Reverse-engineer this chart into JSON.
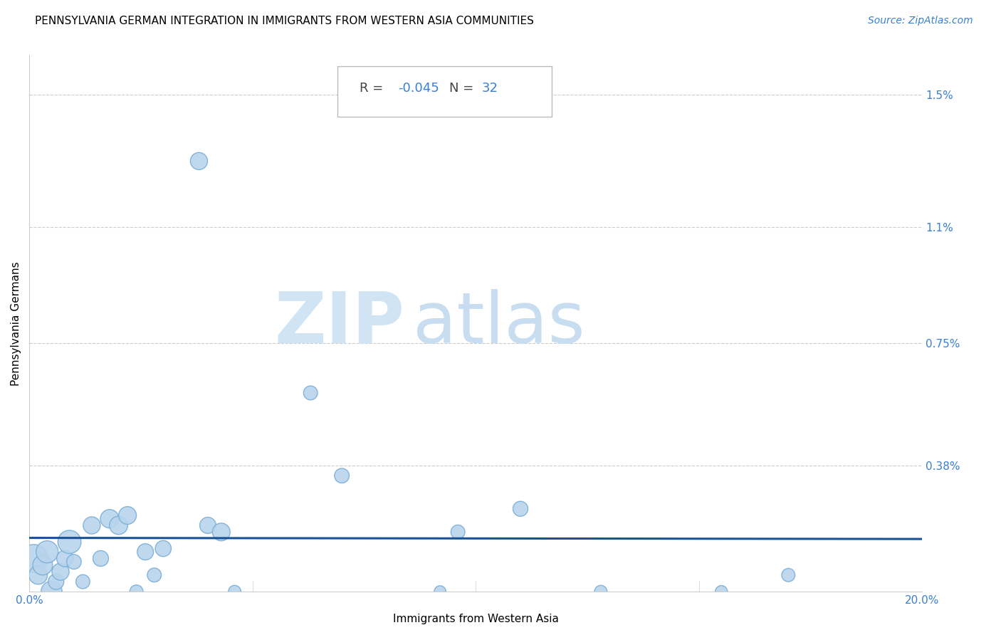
{
  "title": "PENNSYLVANIA GERMAN INTEGRATION IN IMMIGRANTS FROM WESTERN ASIA COMMUNITIES",
  "source": "Source: ZipAtlas.com",
  "xlabel": "Immigrants from Western Asia",
  "ylabel": "Pennsylvania Germans",
  "R": -0.045,
  "N": 32,
  "xlim": [
    0.0,
    0.2
  ],
  "ylim": [
    0.0,
    0.0162
  ],
  "xticks": [
    0.0,
    0.05,
    0.1,
    0.15,
    0.2
  ],
  "xticklabels": [
    "0.0%",
    "",
    "",
    "",
    "20.0%"
  ],
  "ytick_positions": [
    0.0,
    0.0038,
    0.0075,
    0.011,
    0.015
  ],
  "ytick_labels": [
    "",
    "0.38%",
    "0.75%",
    "1.1%",
    "1.5%"
  ],
  "scatter_x": [
    0.001,
    0.002,
    0.003,
    0.004,
    0.005,
    0.006,
    0.007,
    0.008,
    0.009,
    0.01,
    0.012,
    0.014,
    0.016,
    0.018,
    0.02,
    0.022,
    0.024,
    0.026,
    0.028,
    0.03,
    0.038,
    0.04,
    0.043,
    0.046,
    0.063,
    0.07,
    0.092,
    0.096,
    0.11,
    0.128,
    0.155,
    0.17
  ],
  "scatter_y": [
    0.001,
    0.0005,
    0.0008,
    0.0012,
    0.0,
    0.0003,
    0.0006,
    0.001,
    0.0015,
    0.0009,
    0.0003,
    0.002,
    0.001,
    0.0022,
    0.002,
    0.0023,
    0.0,
    0.0012,
    0.0005,
    0.0013,
    0.013,
    0.002,
    0.0018,
    0.0,
    0.006,
    0.0035,
    0.0,
    0.0018,
    0.0025,
    0.0,
    0.0,
    0.0005
  ],
  "scatter_sizes": [
    800,
    350,
    400,
    500,
    450,
    250,
    300,
    280,
    550,
    220,
    200,
    300,
    250,
    350,
    340,
    320,
    180,
    270,
    200,
    260,
    300,
    270,
    320,
    160,
    200,
    220,
    140,
    200,
    230,
    160,
    150,
    180
  ],
  "bubble_color": "#b8d4ec",
  "bubble_edge_color": "#7aaed6",
  "trend_color": "#1a5296",
  "grid_color": "#cccccc",
  "watermark_zip_color": "#d0e4f4",
  "watermark_atlas_color": "#c8ddf0",
  "title_fontsize": 11,
  "source_fontsize": 10,
  "axis_label_fontsize": 11,
  "tick_fontsize": 11,
  "annotation_fontsize": 13,
  "watermark_zip_fontsize": 72,
  "watermark_atlas_fontsize": 72
}
